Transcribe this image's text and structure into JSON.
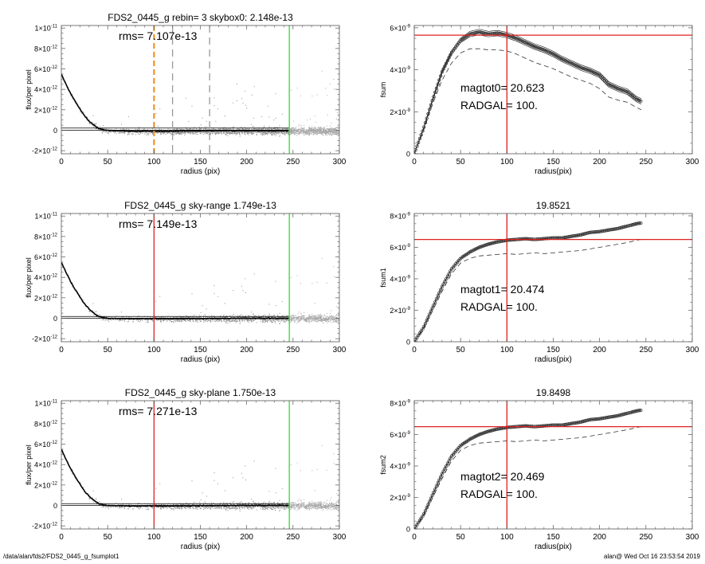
{
  "footer": {
    "path": "/data/alan/fds2/FDS2_0445_g_fsumplot1",
    "user_time": "alan@  Wed Oct 16 23:53:54 2019"
  },
  "colors": {
    "sky_line": "#000000",
    "scatter": "#8c8c8c",
    "scatter_outer": "#a8a8a8",
    "orange": "#f08a1c",
    "green": "#2be02b",
    "red": "#e02020",
    "gray_dash": "#999999"
  },
  "chart_data": [
    {
      "type": "scatter",
      "panel": "left-1",
      "title": "FDS2_0445_g rebin= 3    skybox0:  2.148e-13",
      "annotation": "rms= 7.107e-13",
      "xlabel": "radius (pix)",
      "ylabel": "flux/per pixel",
      "xlim": [
        0,
        300
      ],
      "ylim": [
        -2.3e-12,
        1.025e-11
      ],
      "xticks": [
        "0",
        "50",
        "100",
        "150",
        "200",
        "250",
        "300"
      ],
      "yticks": [
        {
          "v": 1e-11,
          "label": "1×10^-11"
        },
        {
          "v": 8e-12,
          "label": "8×10^-12"
        },
        {
          "v": 6e-12,
          "label": "6×10^-12"
        },
        {
          "v": 4e-12,
          "label": "4×10^-12"
        },
        {
          "v": 2e-12,
          "label": "2×10^-12"
        },
        {
          "v": 0,
          "label": "0"
        },
        {
          "v": -2e-12,
          "label": "-2×10^-12"
        }
      ],
      "profile": {
        "x": [
          0,
          5,
          10,
          15,
          20,
          25,
          30,
          35,
          40,
          45,
          50,
          60,
          70,
          80,
          100,
          120,
          150,
          200,
          245
        ],
        "y": [
          5.5e-12,
          4.5e-12,
          3.6e-12,
          2.8e-12,
          2.1e-12,
          1.4e-12,
          9e-13,
          5e-13,
          2e-13,
          5e-14,
          0,
          -5e-14,
          -1e-13,
          -1e-13,
          -1e-13,
          -1e-13,
          -5e-14,
          -5e-14,
          -5e-14
        ]
      },
      "hlines": [
        0,
        2.148e-13
      ],
      "vlines": [
        {
          "x": 100,
          "color": "orange",
          "style": "dashed"
        },
        {
          "x": 120,
          "color": "gray_dash",
          "style": "dashed"
        },
        {
          "x": 160,
          "color": "gray_dash",
          "style": "dashed"
        },
        {
          "x": 246,
          "color": "green",
          "style": "solid"
        }
      ]
    },
    {
      "type": "line",
      "panel": "right-1",
      "title": "",
      "annotations": [
        "magtot0=  20.623",
        "RADGAL=    100."
      ],
      "xlabel": "radius(pix)",
      "ylabel": "fsum",
      "xlim": [
        0,
        300
      ],
      "ylim": [
        0,
        6.11e-09
      ],
      "xticks": [
        "0",
        "50",
        "100",
        "150",
        "200",
        "250",
        "300"
      ],
      "yticks": [
        {
          "v": 6e-09,
          "label": "6×10^-9"
        },
        {
          "v": 4e-09,
          "label": "4×10^-9"
        },
        {
          "v": 2e-09,
          "label": "2×10^-9"
        },
        {
          "v": 0,
          "label": "0"
        }
      ],
      "x": [
        0,
        10,
        20,
        30,
        40,
        50,
        60,
        70,
        80,
        90,
        100,
        110,
        120,
        130,
        140,
        150,
        160,
        170,
        180,
        190,
        200,
        210,
        220,
        230,
        240,
        245
      ],
      "series": [
        {
          "style": "symbols",
          "values": [
            0,
            1.2e-09,
            2.6e-09,
            3.9e-09,
            4.8e-09,
            5.4e-09,
            5.7e-09,
            5.8e-09,
            5.7e-09,
            5.75e-09,
            5.65e-09,
            5.5e-09,
            5.3e-09,
            5.1e-09,
            4.95e-09,
            4.75e-09,
            4.5e-09,
            4.3e-09,
            4.1e-09,
            3.95e-09,
            3.75e-09,
            3.3e-09,
            3.1e-09,
            2.95e-09,
            2.6e-09,
            2.5e-09
          ],
          "envelope": 1.3e-10
        },
        {
          "style": "dashed",
          "values": [
            0,
            1.1e-09,
            2.4e-09,
            3.5e-09,
            4.3e-09,
            4.8e-09,
            5e-09,
            5e-09,
            4.95e-09,
            4.95e-09,
            4.9e-09,
            4.75e-09,
            4.55e-09,
            4.35e-09,
            4.2e-09,
            4.05e-09,
            3.85e-09,
            3.65e-09,
            3.5e-09,
            3.35e-09,
            3.1e-09,
            2.7e-09,
            2.55e-09,
            2.45e-09,
            2.2e-09,
            2.1e-09
          ]
        }
      ],
      "hline": 5.65e-09,
      "vline": 100
    },
    {
      "type": "scatter",
      "panel": "left-2",
      "title": "FDS2_0445_g sky-range  1.749e-13",
      "annotation": "rms= 7.149e-13",
      "xlabel": "radius (pix)",
      "ylabel": "flux/per pixel",
      "xlim": [
        0,
        300
      ],
      "ylim": [
        -2.3e-12,
        1.025e-11
      ],
      "xticks": [
        "0",
        "50",
        "100",
        "150",
        "200",
        "250",
        "300"
      ],
      "yticks": [
        {
          "v": 1e-11,
          "label": "1×10^-11"
        },
        {
          "v": 8e-12,
          "label": "8×10^-12"
        },
        {
          "v": 6e-12,
          "label": "6×10^-12"
        },
        {
          "v": 4e-12,
          "label": "4×10^-12"
        },
        {
          "v": 2e-12,
          "label": "2×10^-12"
        },
        {
          "v": 0,
          "label": "0"
        },
        {
          "v": -2e-12,
          "label": "-2×10^-12"
        }
      ],
      "profile": {
        "x": [
          0,
          5,
          10,
          15,
          20,
          25,
          30,
          35,
          40,
          45,
          50,
          60,
          70,
          80,
          100,
          120,
          150,
          200,
          245
        ],
        "y": [
          5.5e-12,
          4.5e-12,
          3.6e-12,
          2.8e-12,
          2.1e-12,
          1.4e-12,
          9e-13,
          5e-13,
          2e-13,
          5e-14,
          0,
          -3e-14,
          -5e-14,
          -5e-14,
          -5e-14,
          -5e-14,
          -3e-14,
          0,
          0
        ]
      },
      "hlines": [
        0,
        1.749e-13
      ],
      "vlines": [
        {
          "x": 100,
          "color": "red",
          "style": "solid"
        },
        {
          "x": 246,
          "color": "green",
          "style": "solid"
        }
      ]
    },
    {
      "type": "line",
      "panel": "right-2",
      "title": "19.8521",
      "annotations": [
        "magtot1=  20.474",
        "RADGAL=    100."
      ],
      "xlabel": "radius(pix)",
      "ylabel": "fsum1",
      "xlim": [
        0,
        300
      ],
      "ylim": [
        0,
        8.15e-09
      ],
      "xticks": [
        "0",
        "50",
        "100",
        "150",
        "200",
        "250",
        "300"
      ],
      "yticks": [
        {
          "v": 8e-09,
          "label": "8×10^-9"
        },
        {
          "v": 6e-09,
          "label": "6×10^-9"
        },
        {
          "v": 4e-09,
          "label": "4×10^-9"
        },
        {
          "v": 2e-09,
          "label": "2×10^-9"
        },
        {
          "v": 0,
          "label": "0"
        }
      ],
      "x": [
        0,
        10,
        20,
        30,
        40,
        50,
        60,
        70,
        80,
        90,
        100,
        110,
        120,
        130,
        140,
        150,
        160,
        170,
        180,
        190,
        200,
        210,
        220,
        230,
        240,
        245
      ],
      "series": [
        {
          "style": "symbols",
          "values": [
            0,
            9e-10,
            2.2e-09,
            3.5e-09,
            4.6e-09,
            5.3e-09,
            5.7e-09,
            6e-09,
            6.2e-09,
            6.35e-09,
            6.45e-09,
            6.5e-09,
            6.55e-09,
            6.5e-09,
            6.55e-09,
            6.6e-09,
            6.6e-09,
            6.7e-09,
            6.8e-09,
            6.95e-09,
            7e-09,
            7.1e-09,
            7.2e-09,
            7.35e-09,
            7.5e-09,
            7.55e-09
          ]
        },
        {
          "style": "dashed",
          "values": [
            0,
            8e-10,
            2e-09,
            3.2e-09,
            4.3e-09,
            5e-09,
            5.3e-09,
            5.45e-09,
            5.5e-09,
            5.55e-09,
            5.6e-09,
            5.55e-09,
            5.6e-09,
            5.65e-09,
            5.6e-09,
            5.65e-09,
            5.7e-09,
            5.75e-09,
            5.8e-09,
            5.9e-09,
            6e-09,
            6.1e-09,
            6.2e-09,
            6.3e-09,
            6.45e-09,
            6.5e-09
          ]
        }
      ],
      "hline": 6.5e-09,
      "vline": 100
    },
    {
      "type": "scatter",
      "panel": "left-3",
      "title": "FDS2_0445_g sky-plane  1.750e-13",
      "annotation": "rms= 7.271e-13",
      "xlabel": "radius (pix)",
      "ylabel": "flux/per pixel",
      "xlim": [
        0,
        300
      ],
      "ylim": [
        -2.3e-12,
        1.025e-11
      ],
      "xticks": [
        "0",
        "50",
        "100",
        "150",
        "200",
        "250",
        "300"
      ],
      "yticks": [
        {
          "v": 1e-11,
          "label": "1×10^-11"
        },
        {
          "v": 8e-12,
          "label": "8×10^-12"
        },
        {
          "v": 6e-12,
          "label": "6×10^-12"
        },
        {
          "v": 4e-12,
          "label": "4×10^-12"
        },
        {
          "v": 2e-12,
          "label": "2×10^-12"
        },
        {
          "v": 0,
          "label": "0"
        },
        {
          "v": -2e-12,
          "label": "-2×10^-12"
        }
      ],
      "profile": {
        "x": [
          0,
          5,
          10,
          15,
          20,
          25,
          30,
          35,
          40,
          45,
          50,
          60,
          70,
          80,
          100,
          120,
          150,
          200,
          245
        ],
        "y": [
          5.5e-12,
          4.5e-12,
          3.6e-12,
          2.8e-12,
          2.1e-12,
          1.4e-12,
          9e-13,
          5e-13,
          2e-13,
          5e-14,
          0,
          -3e-14,
          -5e-14,
          -5e-14,
          -5e-14,
          -5e-14,
          -3e-14,
          0,
          0
        ]
      },
      "hlines": [
        0,
        1.75e-13
      ],
      "vlines": [
        {
          "x": 100,
          "color": "red",
          "style": "solid"
        },
        {
          "x": 246,
          "color": "green",
          "style": "solid"
        }
      ]
    },
    {
      "type": "line",
      "panel": "right-3",
      "title": "19.8498",
      "annotations": [
        "magtot2=  20.469",
        "RADGAL=    100."
      ],
      "xlabel": "radius(pix)",
      "ylabel": "fsum2",
      "xlim": [
        0,
        300
      ],
      "ylim": [
        0,
        8.15e-09
      ],
      "xticks": [
        "0",
        "50",
        "100",
        "150",
        "200",
        "250",
        "300"
      ],
      "yticks": [
        {
          "v": 8e-09,
          "label": "8×10^-9"
        },
        {
          "v": 6e-09,
          "label": "6×10^-9"
        },
        {
          "v": 4e-09,
          "label": "4×10^-9"
        },
        {
          "v": 2e-09,
          "label": "2×10^-9"
        },
        {
          "v": 0,
          "label": "0"
        }
      ],
      "x": [
        0,
        10,
        20,
        30,
        40,
        50,
        60,
        70,
        80,
        90,
        100,
        110,
        120,
        130,
        140,
        150,
        160,
        170,
        180,
        190,
        200,
        210,
        220,
        230,
        240,
        245
      ],
      "series": [
        {
          "style": "symbols",
          "values": [
            0,
            9e-10,
            2.2e-09,
            3.5e-09,
            4.6e-09,
            5.3e-09,
            5.7e-09,
            6e-09,
            6.2e-09,
            6.35e-09,
            6.45e-09,
            6.5e-09,
            6.55e-09,
            6.5e-09,
            6.55e-09,
            6.6e-09,
            6.6e-09,
            6.7e-09,
            6.8e-09,
            6.95e-09,
            7e-09,
            7.1e-09,
            7.2e-09,
            7.35e-09,
            7.5e-09,
            7.55e-09
          ]
        },
        {
          "style": "dashed",
          "values": [
            0,
            8e-10,
            2e-09,
            3.2e-09,
            4.3e-09,
            5e-09,
            5.3e-09,
            5.45e-09,
            5.5e-09,
            5.55e-09,
            5.6e-09,
            5.55e-09,
            5.6e-09,
            5.65e-09,
            5.6e-09,
            5.65e-09,
            5.7e-09,
            5.75e-09,
            5.8e-09,
            5.9e-09,
            6e-09,
            6.1e-09,
            6.2e-09,
            6.3e-09,
            6.45e-09,
            6.5e-09
          ]
        }
      ],
      "hline": 6.5e-09,
      "vline": 100
    }
  ]
}
